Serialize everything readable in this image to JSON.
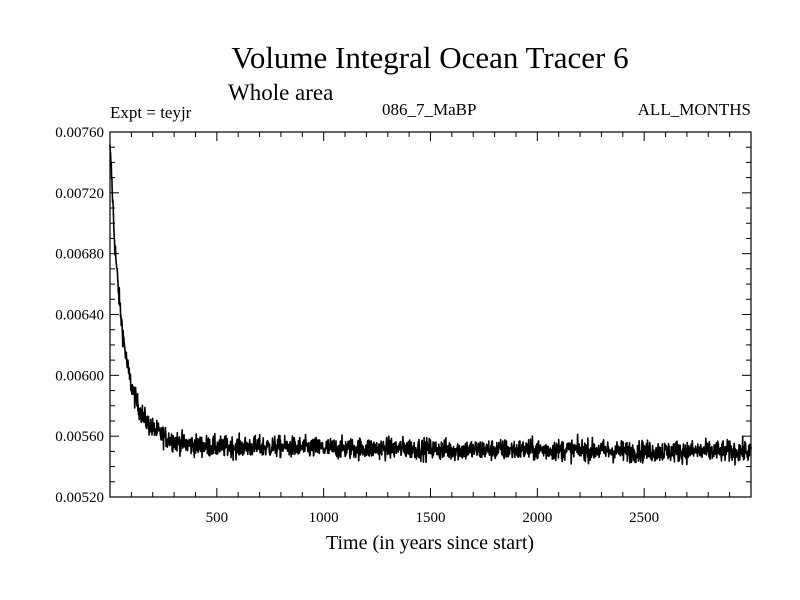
{
  "chart_data": {
    "type": "line",
    "title": "Volume Integral Ocean Tracer 6",
    "subtitle": "Whole area",
    "annotations": {
      "expt": "Expt = teyjr",
      "run": "086_7_MaBP",
      "months": "ALL_MONTHS"
    },
    "xlabel": "Time (in years since start)",
    "ylabel": "",
    "xlim": [
      0,
      3000
    ],
    "ylim": [
      0.0052,
      0.0076
    ],
    "x_ticks": [
      500,
      1000,
      1500,
      2000,
      2500
    ],
    "x_tick_labels": [
      "500",
      "1000",
      "1500",
      "2000",
      "2500"
    ],
    "y_ticks": [
      0.0052,
      0.0056,
      0.006,
      0.0064,
      0.0068,
      0.0072,
      0.0076
    ],
    "y_tick_labels": [
      "0.00520",
      "0.00560",
      "0.00600",
      "0.00640",
      "0.00680",
      "0.00720",
      "0.00760"
    ],
    "grid": false,
    "series": [
      {
        "name": "Volume Integral Ocean Tracer 6",
        "color": "#000000",
        "x": [
          0,
          5,
          10,
          15,
          20,
          30,
          40,
          50,
          60,
          70,
          80,
          90,
          100,
          120,
          140,
          160,
          180,
          200,
          250,
          300,
          350,
          400,
          500,
          600,
          800,
          1000,
          1200,
          1400,
          1600,
          1800,
          2000,
          2200,
          2400,
          2600,
          2800,
          3000
        ],
        "y": [
          0.00748,
          0.00738,
          0.00724,
          0.00708,
          0.00692,
          0.00672,
          0.00655,
          0.0064,
          0.00628,
          0.00617,
          0.00607,
          0.006,
          0.00593,
          0.00584,
          0.00577,
          0.00572,
          0.00568,
          0.00565,
          0.0056,
          0.00557,
          0.00555,
          0.00554,
          0.00553,
          0.00553,
          0.00553,
          0.00552,
          0.00552,
          0.00552,
          0.00551,
          0.00551,
          0.00551,
          0.00551,
          0.0055,
          0.0055,
          0.0055,
          0.0055
        ],
        "noise_amplitude": 9e-05,
        "note": "mean trajectory; the plotted series fluctuates roughly ±0.0001 around it"
      }
    ]
  }
}
